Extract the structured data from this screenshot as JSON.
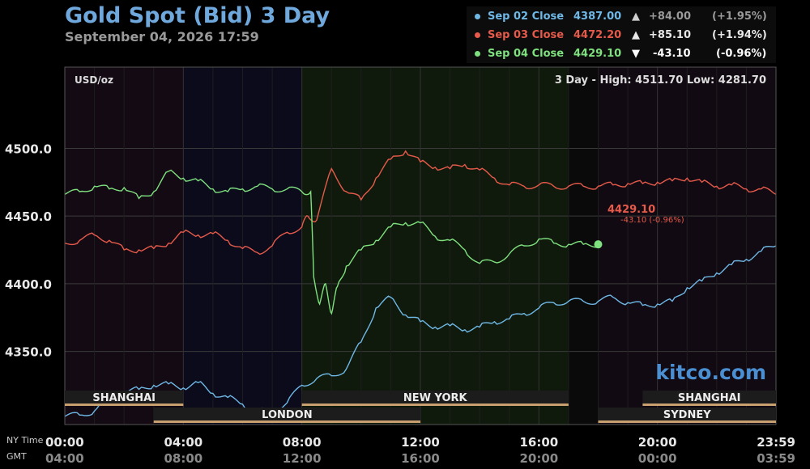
{
  "title": "Gold Spot (Bid) 3 Day",
  "subtitle": "September 04, 2026 17:59",
  "legend": [
    {
      "label": "Sep 02 Close",
      "value": "4387.00",
      "arrow": "▲",
      "change": "+84.00",
      "pct": "(+1.95%)",
      "color": "#6fb8e6"
    },
    {
      "label": "Sep 03 Close",
      "value": "4472.20",
      "arrow": "▲",
      "change": "+85.10",
      "pct": "(+1.94%)",
      "color": "#e55a4a"
    },
    {
      "label": "Sep 04 Close",
      "value": "4429.10",
      "arrow": "▼",
      "change": "-43.10",
      "pct": "(-0.96%)",
      "color": "#7ee07e"
    }
  ],
  "unit_label": "USD/oz",
  "range_text": "3 Day - High: 4511.70  Low: 4281.70",
  "watermark": "kitco.com",
  "last_label": {
    "price": "4429.10",
    "change": "-43.10 (-0.96%)"
  },
  "axis_names": {
    "ny": "NY Time",
    "gmt": "GMT"
  },
  "colors": {
    "sep02": "#6fb8e6",
    "sep03": "#e55a4a",
    "sep04": "#7ee07e",
    "session_bar": "#c8a070"
  },
  "chart_data": {
    "type": "line",
    "ylim": [
      4296,
      4560
    ],
    "xlim": [
      0,
      24
    ],
    "y_ticks": [
      {
        "v": 4500,
        "label": "4500.0"
      },
      {
        "v": 4450,
        "label": "4450.0"
      },
      {
        "v": 4400,
        "label": "4400.0"
      },
      {
        "v": 4350,
        "label": "4350.0"
      }
    ],
    "x_ticks": [
      {
        "h": 0,
        "ny": "00:00",
        "gmt": "04:00"
      },
      {
        "h": 4,
        "ny": "04:00",
        "gmt": "08:00"
      },
      {
        "h": 8,
        "ny": "08:00",
        "gmt": "12:00"
      },
      {
        "h": 12,
        "ny": "12:00",
        "gmt": "16:00"
      },
      {
        "h": 16,
        "ny": "16:00",
        "gmt": "20:00"
      },
      {
        "h": 20,
        "ny": "20:00",
        "gmt": "00:00"
      },
      {
        "h": 24,
        "ny": "23:59",
        "gmt": "03:59"
      }
    ],
    "sessions": [
      {
        "name": "SHANGHAI",
        "start": 0,
        "end": 4,
        "row": 1
      },
      {
        "name": "NEW YORK",
        "start": 8,
        "end": 17,
        "row": 1
      },
      {
        "name": "SHANGHAI",
        "start": 19.5,
        "end": 24,
        "row": 1
      },
      {
        "name": "LONDON",
        "start": 3,
        "end": 12,
        "row": 2
      },
      {
        "name": "SYDNEY",
        "start": 18,
        "end": 24,
        "row": 2
      }
    ],
    "series": [
      {
        "name": "Sep 02",
        "x": [
          0,
          0.5,
          1,
          1.5,
          2,
          2.5,
          3,
          3.5,
          4,
          4.5,
          5,
          5.5,
          6,
          6.5,
          7,
          7.5,
          8,
          8.5,
          9,
          9.5,
          10,
          10.5,
          11,
          11.5,
          12,
          12.5,
          13,
          13.5,
          14,
          14.5,
          15,
          15.5,
          16,
          16.5,
          17,
          17.5,
          18,
          18.5,
          19,
          19.5,
          20,
          20.5,
          21,
          21.5,
          22,
          22.5,
          23,
          23.5,
          24
        ],
        "y": [
          4302,
          4303,
          4306,
          4316,
          4320,
          4322,
          4325,
          4326,
          4323,
          4327,
          4319,
          4316,
          4311,
          4306,
          4306,
          4312,
          4325,
          4330,
          4332,
          4337,
          4357,
          4382,
          4390,
          4377,
          4372,
          4368,
          4369,
          4366,
          4368,
          4372,
          4374,
          4378,
          4382,
          4386,
          4387,
          4387,
          4387,
          4390,
          4386,
          4384,
          4385,
          4387,
          4397,
          4402,
          4408,
          4414,
          4418,
          4424,
          4428
        ]
      },
      {
        "name": "Sep 03",
        "x": [
          0,
          0.5,
          1,
          1.5,
          2,
          2.5,
          3,
          3.5,
          4,
          4.5,
          5,
          5.5,
          6,
          6.5,
          7,
          7.5,
          8,
          8.2,
          8.5,
          9,
          9.5,
          10,
          10.5,
          11,
          11.5,
          12,
          12.5,
          13,
          13.5,
          14,
          14.5,
          15,
          15.5,
          16,
          16.5,
          17,
          17.5,
          18,
          18.5,
          19,
          19.5,
          20,
          20.5,
          21,
          21.5,
          22,
          22.5,
          23,
          23.5,
          24
        ],
        "y": [
          4430,
          4432,
          4436,
          4432,
          4425,
          4425,
          4426,
          4430,
          4438,
          4436,
          4437,
          4432,
          4426,
          4423,
          4428,
          4438,
          4442,
          4450,
          4447,
          4485,
          4468,
          4462,
          4478,
          4492,
          4498,
          4490,
          4486,
          4485,
          4488,
          4484,
          4478,
          4473,
          4472,
          4473,
          4472,
          4472,
          4472,
          4472,
          4473,
          4474,
          4474,
          4475,
          4476,
          4478,
          4475,
          4472,
          4473,
          4470,
          4470,
          4466
        ]
      },
      {
        "name": "Sep 04",
        "x": [
          0,
          0.5,
          1,
          1.5,
          2,
          2.5,
          3,
          3.5,
          4,
          4.5,
          5,
          5.5,
          6,
          6.5,
          7,
          7.5,
          8,
          8.3,
          8.4,
          8.6,
          8.8,
          9,
          9.2,
          9.5,
          10,
          10.5,
          11,
          11.5,
          12,
          12.5,
          13,
          13.5,
          14,
          14.5,
          15,
          15.5,
          16,
          16.5,
          17,
          17.5,
          18
        ],
        "y": [
          4466,
          4468,
          4472,
          4470,
          4471,
          4463,
          4468,
          4483,
          4478,
          4476,
          4470,
          4468,
          4470,
          4472,
          4470,
          4470,
          4468,
          4468,
          4405,
          4385,
          4400,
          4378,
          4398,
          4413,
          4425,
          4432,
          4442,
          4445,
          4445,
          4435,
          4432,
          4425,
          4415,
          4416,
          4422,
          4428,
          4433,
          4430,
          4429.1,
          4429.1,
          4429.1
        ]
      }
    ]
  }
}
